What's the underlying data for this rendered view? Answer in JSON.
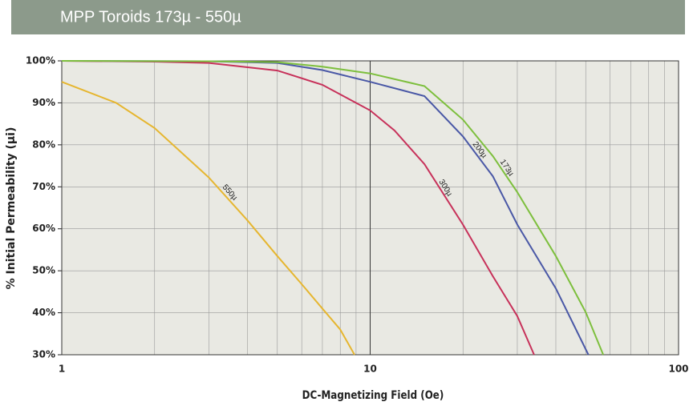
{
  "chart_data": {
    "type": "line",
    "title": "MPP Toroids 173µ - 550µ",
    "xlabel": "DC-Magnetizing Field (Oe)",
    "ylabel": "% Initial Permeability (µi)",
    "xscale": "log",
    "xlim": [
      1,
      100
    ],
    "xticks": [
      1,
      10,
      100
    ],
    "ylim": [
      30,
      100
    ],
    "yticks": [
      {
        "value": 30,
        "label": "30%"
      },
      {
        "value": 40,
        "label": "40%"
      },
      {
        "value": 50,
        "label": "50%"
      },
      {
        "value": 60,
        "label": "60%"
      },
      {
        "value": 70,
        "label": "70%"
      },
      {
        "value": 80,
        "label": "80%"
      },
      {
        "value": 90,
        "label": "90%"
      },
      {
        "value": 100,
        "label": "100%"
      }
    ],
    "grid": true,
    "minor_grid": true,
    "series": [
      {
        "name": "550µ",
        "color": "#e6b630",
        "x": [
          1,
          1.5,
          2,
          3,
          4,
          5,
          6,
          7,
          8,
          8.9
        ],
        "values": [
          95,
          90,
          84,
          72.2,
          62,
          53.5,
          46.8,
          41,
          36,
          30
        ]
      },
      {
        "name": "300µ",
        "color": "#c7315a",
        "x": [
          1,
          2,
          3,
          5,
          7,
          10,
          12,
          15,
          20,
          25,
          30,
          34
        ],
        "values": [
          100,
          99.8,
          99.5,
          97.7,
          94.3,
          88.2,
          83.4,
          75.4,
          61,
          48.7,
          39.2,
          30
        ]
      },
      {
        "name": "200µ",
        "color": "#4a58a6",
        "x": [
          1,
          3,
          5,
          7,
          10,
          15,
          20,
          25,
          30,
          40,
          51
        ],
        "values": [
          100,
          99.9,
          99.5,
          97.8,
          95,
          91.6,
          82,
          72.5,
          61,
          45.8,
          30
        ]
      },
      {
        "name": "173µ",
        "color": "#7dbf3d",
        "x": [
          1,
          3,
          5,
          7,
          10,
          15,
          20,
          25,
          30,
          40,
          50,
          57
        ],
        "values": [
          100,
          99.9,
          99.7,
          98.6,
          97,
          94,
          86,
          77.3,
          68.7,
          53.5,
          40.1,
          30
        ]
      }
    ]
  }
}
